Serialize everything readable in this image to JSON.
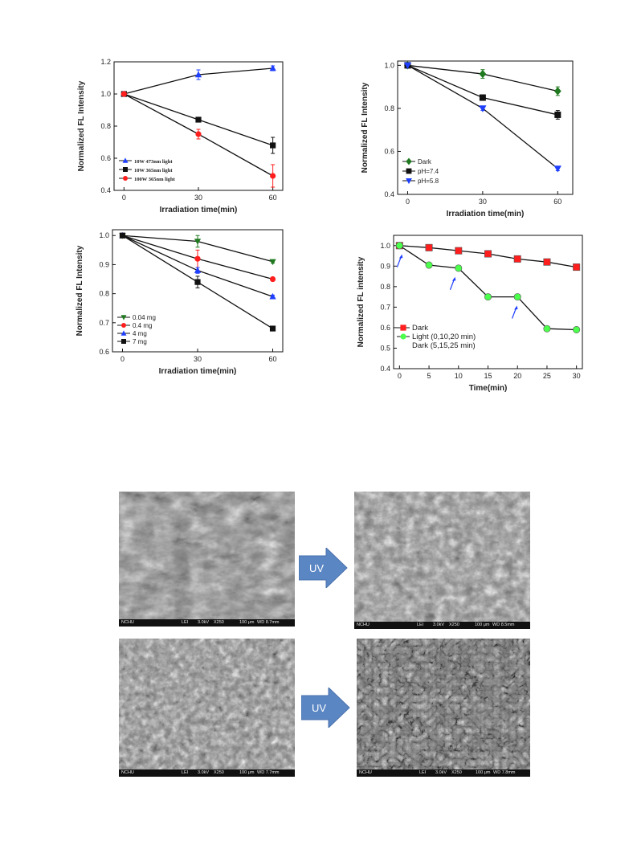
{
  "chart_data": [
    {
      "id": "panel-a",
      "type": "line",
      "xlabel": "Irradiation time(min)",
      "ylabel": "Normalized FL Intensity",
      "xlim": [
        -4,
        64
      ],
      "ylim": [
        0.4,
        1.2
      ],
      "xticks": [
        0,
        30,
        60
      ],
      "xtick_labels": [
        "0",
        "30",
        "60"
      ],
      "yticks": [
        0.4,
        0.6,
        0.8,
        1.0,
        1.2
      ],
      "ytick_labels": [
        "0.4",
        "0.6",
        "0.8",
        "1.0",
        "1.2"
      ],
      "legend_position": "bottom-left",
      "legend_style": "serif",
      "series": [
        {
          "name": "10W 473nm light",
          "color": "#1f3fff",
          "marker": "triangle-up",
          "x": [
            0,
            30,
            60
          ],
          "y": [
            1.0,
            1.12,
            1.16
          ],
          "err": [
            0,
            0.03,
            0.015
          ]
        },
        {
          "name": "10W 365nm light",
          "color": "#111111",
          "marker": "square",
          "x": [
            0,
            30,
            60
          ],
          "y": [
            1.0,
            0.84,
            0.68
          ],
          "err": [
            0,
            0.015,
            0.05
          ]
        },
        {
          "name": "100W 365nm light",
          "color": "#ff1e1e",
          "marker": "circle",
          "x": [
            0,
            30,
            60
          ],
          "y": [
            1.0,
            0.75,
            0.49
          ],
          "err": [
            0,
            0.03,
            0.07
          ]
        }
      ]
    },
    {
      "id": "panel-b",
      "type": "line",
      "xlabel": "Irradiation time(min)",
      "ylabel": "Normalized FL Intensity",
      "xlim": [
        -4,
        66
      ],
      "ylim": [
        0.4,
        1.02
      ],
      "xticks": [
        0,
        30,
        60
      ],
      "xtick_labels": [
        "0",
        "30",
        "60"
      ],
      "yticks": [
        0.4,
        0.6,
        0.8,
        1.0
      ],
      "ytick_labels": [
        "0.4",
        "0.6",
        "0.8",
        "1.0"
      ],
      "legend_position": "bottom-left",
      "legend_style": "sans",
      "series": [
        {
          "name": "Dark",
          "color": "#1f7a1f",
          "marker": "diamond",
          "x": [
            0,
            30,
            60
          ],
          "y": [
            1.0,
            0.96,
            0.88
          ],
          "err": [
            0,
            0.02,
            0.02
          ]
        },
        {
          "name": "pH=7.4",
          "color": "#111111",
          "marker": "square",
          "x": [
            0,
            30,
            60
          ],
          "y": [
            1.0,
            0.85,
            0.77
          ],
          "err": [
            0,
            0.01,
            0.02
          ]
        },
        {
          "name": "pH=5.8",
          "color": "#1f3fff",
          "marker": "triangle-down",
          "x": [
            0,
            30,
            60
          ],
          "y": [
            1.0,
            0.8,
            0.52
          ],
          "err": [
            0,
            0.01,
            0.01
          ]
        }
      ]
    },
    {
      "id": "panel-c",
      "type": "line",
      "xlabel": "Irradiation time(min)",
      "ylabel": "Normalized FL Intensity",
      "xlim": [
        -4,
        64
      ],
      "ylim": [
        0.6,
        1.02
      ],
      "xticks": [
        0,
        30,
        60
      ],
      "xtick_labels": [
        "0",
        "30",
        "60"
      ],
      "yticks": [
        0.6,
        0.7,
        0.8,
        0.9,
        1.0
      ],
      "ytick_labels": [
        "0.6",
        "0.7",
        "0.8",
        "0.9",
        "1.0"
      ],
      "legend_position": "bottom-left",
      "legend_style": "sans",
      "series": [
        {
          "name": "0.04 mg",
          "color": "#1f7a1f",
          "marker": "triangle-down",
          "x": [
            0,
            30,
            60
          ],
          "y": [
            1.0,
            0.98,
            0.91
          ],
          "err": [
            0,
            0.02,
            0.005
          ]
        },
        {
          "name": "0.4 mg",
          "color": "#ff1e1e",
          "marker": "circle",
          "x": [
            0,
            30,
            60
          ],
          "y": [
            1.0,
            0.92,
            0.85
          ],
          "err": [
            0,
            0.03,
            0.005
          ]
        },
        {
          "name": "4 mg",
          "color": "#1f3fff",
          "marker": "triangle-up",
          "x": [
            0,
            30,
            60
          ],
          "y": [
            1.0,
            0.88,
            0.79
          ],
          "err": [
            0,
            0.01,
            0.005
          ]
        },
        {
          "name": "7 mg",
          "color": "#111111",
          "marker": "square",
          "x": [
            0,
            30,
            60
          ],
          "y": [
            1.0,
            0.84,
            0.68
          ],
          "err": [
            0,
            0.02,
            0.005
          ]
        }
      ]
    },
    {
      "id": "panel-d",
      "type": "line",
      "xlabel": "Time(min)",
      "ylabel": "Normalized FL intensity",
      "xlim": [
        -1,
        31
      ],
      "ylim": [
        0.4,
        1.05
      ],
      "xticks": [
        0,
        5,
        10,
        15,
        20,
        25,
        30
      ],
      "xtick_labels": [
        "0",
        "5",
        "10",
        "15",
        "20",
        "25",
        "30"
      ],
      "yticks": [
        0.4,
        0.5,
        0.6,
        0.7,
        0.8,
        0.9,
        1.0
      ],
      "ytick_labels": [
        "0.4",
        "0.5",
        "0.6",
        "0.7",
        "0.8",
        "0.9",
        "1.0"
      ],
      "legend_position": "bottom-left",
      "legend_style": "sans-large",
      "legend_extra": "Dark (5,15,25 min)",
      "arrows_at": [
        [
          0,
          0.93
        ],
        [
          9,
          0.82
        ],
        [
          19.5,
          0.68
        ]
      ],
      "series": [
        {
          "name": "Dark",
          "color": "#ff1e1e",
          "marker": "square",
          "x": [
            0,
            5,
            10,
            15,
            20,
            25,
            30
          ],
          "y": [
            1.0,
            0.99,
            0.975,
            0.96,
            0.935,
            0.92,
            0.895
          ]
        },
        {
          "name": "Light (0,10,20 min)",
          "color": "#4cff4c",
          "marker": "circle",
          "x": [
            0,
            5,
            10,
            15,
            20,
            25,
            30
          ],
          "y": [
            1.0,
            0.905,
            0.89,
            0.75,
            0.75,
            0.595,
            0.59
          ]
        }
      ]
    }
  ],
  "sem_images": [
    {
      "id": "sem-1",
      "bar": [
        "NCHU",
        "LEI",
        "3.0kV",
        "X250",
        "100 μm",
        "WD 8.7mm"
      ]
    },
    {
      "id": "sem-2",
      "bar": [
        "NCHU",
        "LEI",
        "3.0kV",
        "X250",
        "100 μm",
        "WD 8.5mm"
      ]
    },
    {
      "id": "sem-3",
      "bar": [
        "NCHU",
        "LEI",
        "3.0kV",
        "X250",
        "100 μm",
        "WD 7.7mm"
      ]
    },
    {
      "id": "sem-4",
      "bar": [
        "NCHU",
        "LEI",
        "3.0kV",
        "X250",
        "100 μm",
        "WD 7.8mm"
      ]
    }
  ],
  "arrows": [
    {
      "id": "arrow-top",
      "label": "UV",
      "color": "#5b86c4"
    },
    {
      "id": "arrow-bottom",
      "label": "UV",
      "color": "#5b86c4"
    }
  ]
}
